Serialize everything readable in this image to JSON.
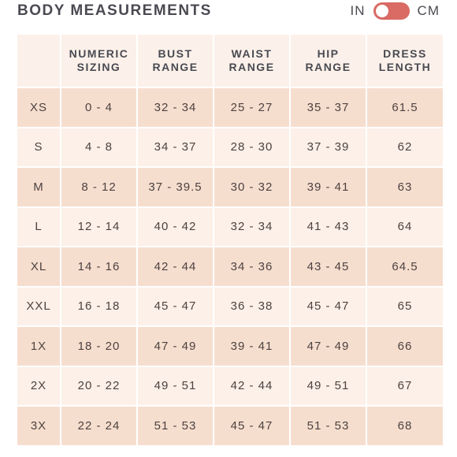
{
  "title": "BODY MEASUREMENTS",
  "units": {
    "left_label": "IN",
    "right_label": "CM",
    "colors": {
      "switch_track": "#d96a64",
      "knob": "#ffffff"
    }
  },
  "table": {
    "headers": [
      {
        "line1": "",
        "line2": ""
      },
      {
        "line1": "NUMERIC",
        "line2": "SIZING"
      },
      {
        "line1": "BUST",
        "line2": "RANGE"
      },
      {
        "line1": "WAIST",
        "line2": "RANGE"
      },
      {
        "line1": "HIP",
        "line2": "RANGE"
      },
      {
        "line1": "DRESS",
        "line2": "LENGTH"
      }
    ],
    "rows": [
      [
        "XS",
        "0 - 4",
        "32 - 34",
        "25 - 27",
        "35 - 37",
        "61.5"
      ],
      [
        "S",
        "4 - 8",
        "34 - 37",
        "28 - 30",
        "37 - 39",
        "62"
      ],
      [
        "M",
        "8 - 12",
        "37 - 39.5",
        "30 - 32",
        "39 - 41",
        "63"
      ],
      [
        "L",
        "12 - 14",
        "40 - 42",
        "32 - 34",
        "41 - 43",
        "64"
      ],
      [
        "XL",
        "14 - 16",
        "42 - 44",
        "34 - 36",
        "43 - 45",
        "64.5"
      ],
      [
        "XXL",
        "16 - 18",
        "45 - 47",
        "36 - 38",
        "45 - 47",
        "65"
      ],
      [
        "1X",
        "18 - 20",
        "47 - 49",
        "39 - 41",
        "47 - 49",
        "66"
      ],
      [
        "2X",
        "20 - 22",
        "49 - 51",
        "42 - 44",
        "49 - 51",
        "67"
      ],
      [
        "3X",
        "22 - 24",
        "51 - 53",
        "45 - 47",
        "51 - 53",
        "68"
      ]
    ],
    "colors": {
      "header_bg": "#fbf1ea",
      "row_dark": "#f6decf",
      "row_light": "#fcf0e8"
    }
  }
}
